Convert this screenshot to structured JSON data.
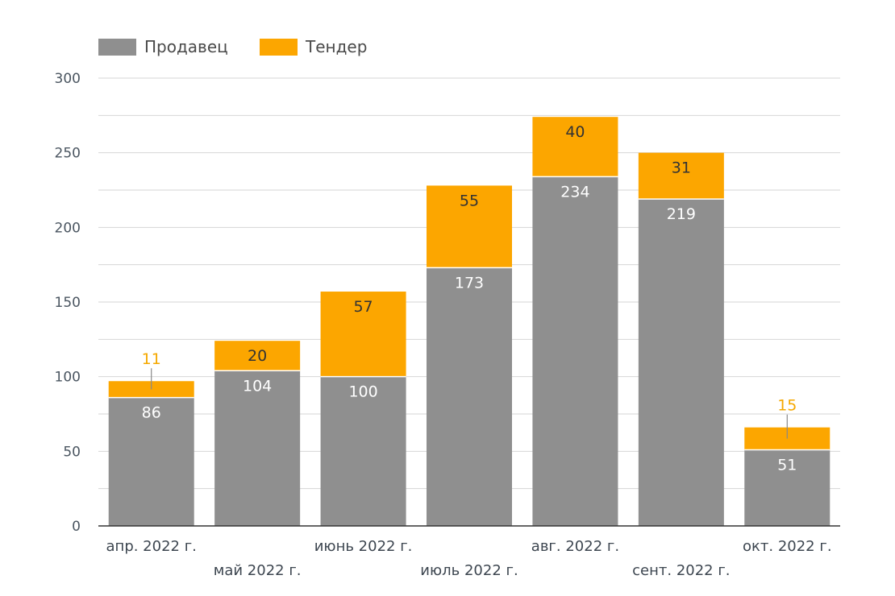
{
  "chart_data": {
    "type": "bar",
    "stacked": true,
    "title": "",
    "xlabel": "",
    "ylabel": "",
    "ylim": [
      0,
      300
    ],
    "yticks": [
      0,
      50,
      100,
      150,
      200,
      250,
      300
    ],
    "grid": true,
    "legend_position": "top-left",
    "categories": [
      "апр. 2022 г.",
      "май 2022 г.",
      "июнь 2022 г.",
      "июль 2022 г.",
      "авг. 2022 г.",
      "сент. 2022 г.",
      "окт. 2022 г."
    ],
    "series": [
      {
        "name": "Продавец",
        "color": "#8f8f8f",
        "values": [
          86,
          104,
          100,
          173,
          234,
          219,
          51
        ]
      },
      {
        "name": "Тендер",
        "color": "#fca600",
        "values": [
          11,
          20,
          57,
          55,
          40,
          31,
          15
        ]
      }
    ]
  }
}
